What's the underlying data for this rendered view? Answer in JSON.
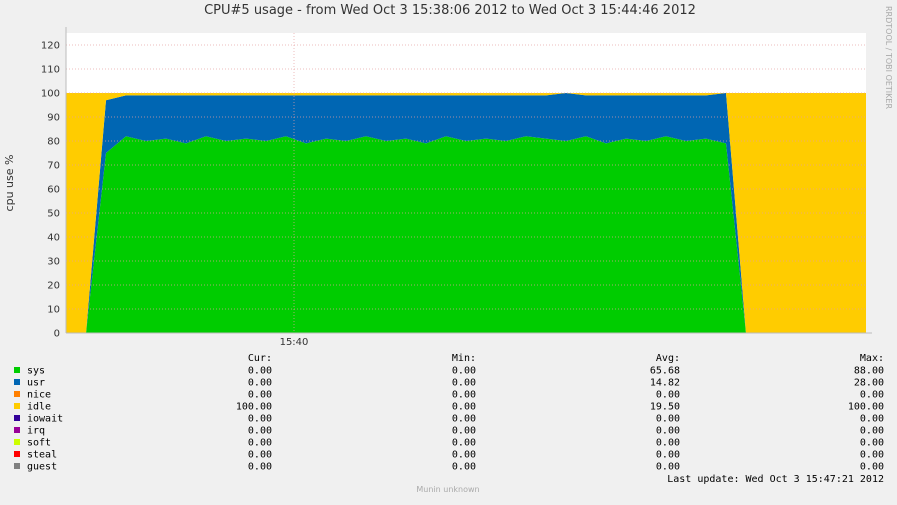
{
  "chart_data": {
    "type": "area",
    "stacked": true,
    "title": "CPU#5 usage - from Wed Oct  3 15:38:06 2012 to Wed Oct  3 15:44:46 2012",
    "y_label": "cpu use %",
    "watermark": "RRDTOOL / TOBI OETIKER",
    "footer": "Munin unknown",
    "last_update": "Last update:  Wed Oct  3 15:47:21 2012",
    "x": [
      "15:38:06",
      "15:38:16",
      "15:38:26",
      "15:38:36",
      "15:38:46",
      "15:38:56",
      "15:39:06",
      "15:39:16",
      "15:39:26",
      "15:39:36",
      "15:39:46",
      "15:39:56",
      "15:40:06",
      "15:40:16",
      "15:40:26",
      "15:40:36",
      "15:40:46",
      "15:40:56",
      "15:41:06",
      "15:41:16",
      "15:41:26",
      "15:41:36",
      "15:41:46",
      "15:41:56",
      "15:42:06",
      "15:42:16",
      "15:42:26",
      "15:42:36",
      "15:42:46",
      "15:42:56",
      "15:43:06",
      "15:43:16",
      "15:43:26",
      "15:43:36",
      "15:43:46",
      "15:43:56",
      "15:44:06",
      "15:44:16",
      "15:44:26",
      "15:44:36",
      "15:44:46"
    ],
    "xlim": [
      "15:38:06",
      "15:44:46"
    ],
    "xticks": [
      {
        "value": "15:40:00",
        "label": "15:40"
      }
    ],
    "ylim": [
      0,
      125
    ],
    "yticks": [
      0,
      10,
      20,
      30,
      40,
      50,
      60,
      70,
      80,
      90,
      100,
      110,
      120
    ],
    "grid": true,
    "series": [
      {
        "name": "sys",
        "color": "#00cc00",
        "values": [
          0,
          0,
          75,
          82,
          80,
          81,
          79,
          82,
          80,
          81,
          80,
          82,
          79,
          81,
          80,
          82,
          80,
          81,
          79,
          82,
          80,
          81,
          80,
          82,
          81,
          80,
          82,
          79,
          81,
          80,
          82,
          80,
          81,
          79,
          0,
          0,
          0,
          0,
          0,
          0,
          0
        ]
      },
      {
        "name": "usr",
        "color": "#0066b3",
        "values": [
          0,
          0,
          22,
          17,
          19,
          18,
          20,
          17,
          19,
          18,
          19,
          17,
          20,
          18,
          19,
          17,
          19,
          18,
          20,
          17,
          19,
          18,
          19,
          17,
          18,
          20,
          17,
          20,
          18,
          19,
          17,
          19,
          18,
          21,
          0,
          0,
          0,
          0,
          0,
          0,
          0
        ]
      },
      {
        "name": "nice",
        "color": "#ff8000",
        "values": [
          0,
          0,
          0,
          0,
          0,
          0,
          0,
          0,
          0,
          0,
          0,
          0,
          0,
          0,
          0,
          0,
          0,
          0,
          0,
          0,
          0,
          0,
          0,
          0,
          0,
          0,
          0,
          0,
          0,
          0,
          0,
          0,
          0,
          0,
          0,
          0,
          0,
          0,
          0,
          0,
          0
        ]
      },
      {
        "name": "idle",
        "color": "#ffcc00",
        "values": [
          100,
          100,
          3,
          1,
          1,
          1,
          1,
          1,
          1,
          1,
          1,
          1,
          1,
          1,
          1,
          1,
          1,
          1,
          1,
          1,
          1,
          1,
          1,
          1,
          1,
          0,
          1,
          1,
          1,
          1,
          1,
          1,
          1,
          0,
          100,
          100,
          100,
          100,
          100,
          100,
          100
        ]
      },
      {
        "name": "iowait",
        "color": "#330099",
        "values": [
          0,
          0,
          0,
          0,
          0,
          0,
          0,
          0,
          0,
          0,
          0,
          0,
          0,
          0,
          0,
          0,
          0,
          0,
          0,
          0,
          0,
          0,
          0,
          0,
          0,
          0,
          0,
          0,
          0,
          0,
          0,
          0,
          0,
          0,
          0,
          0,
          0,
          0,
          0,
          0,
          0
        ]
      },
      {
        "name": "irq",
        "color": "#990099",
        "values": [
          0,
          0,
          0,
          0,
          0,
          0,
          0,
          0,
          0,
          0,
          0,
          0,
          0,
          0,
          0,
          0,
          0,
          0,
          0,
          0,
          0,
          0,
          0,
          0,
          0,
          0,
          0,
          0,
          0,
          0,
          0,
          0,
          0,
          0,
          0,
          0,
          0,
          0,
          0,
          0,
          0
        ]
      },
      {
        "name": "soft",
        "color": "#ccff00",
        "values": [
          0,
          0,
          0,
          0,
          0,
          0,
          0,
          0,
          0,
          0,
          0,
          0,
          0,
          0,
          0,
          0,
          0,
          0,
          0,
          0,
          0,
          0,
          0,
          0,
          0,
          0,
          0,
          0,
          0,
          0,
          0,
          0,
          0,
          0,
          0,
          0,
          0,
          0,
          0,
          0,
          0
        ]
      },
      {
        "name": "steal",
        "color": "#ff0000",
        "values": [
          0,
          0,
          0,
          0,
          0,
          0,
          0,
          0,
          0,
          0,
          0,
          0,
          0,
          0,
          0,
          0,
          0,
          0,
          0,
          0,
          0,
          0,
          0,
          0,
          0,
          0,
          0,
          0,
          0,
          0,
          0,
          0,
          0,
          0,
          0,
          0,
          0,
          0,
          0,
          0,
          0
        ]
      },
      {
        "name": "guest",
        "color": "#808080",
        "values": [
          0,
          0,
          0,
          0,
          0,
          0,
          0,
          0,
          0,
          0,
          0,
          0,
          0,
          0,
          0,
          0,
          0,
          0,
          0,
          0,
          0,
          0,
          0,
          0,
          0,
          0,
          0,
          0,
          0,
          0,
          0,
          0,
          0,
          0,
          0,
          0,
          0,
          0,
          0,
          0,
          0
        ]
      }
    ],
    "stats_headers": [
      "Cur:",
      "Min:",
      "Avg:",
      "Max:"
    ],
    "stats": [
      [
        "0.00",
        "0.00",
        "65.68",
        "88.00"
      ],
      [
        "0.00",
        "0.00",
        "14.82",
        "28.00"
      ],
      [
        "0.00",
        "0.00",
        "0.00",
        "0.00"
      ],
      [
        "100.00",
        "0.00",
        "19.50",
        "100.00"
      ],
      [
        "0.00",
        "0.00",
        "0.00",
        "0.00"
      ],
      [
        "0.00",
        "0.00",
        "0.00",
        "0.00"
      ],
      [
        "0.00",
        "0.00",
        "0.00",
        "0.00"
      ],
      [
        "0.00",
        "0.00",
        "0.00",
        "0.00"
      ],
      [
        "0.00",
        "0.00",
        "0.00",
        "0.00"
      ]
    ]
  }
}
